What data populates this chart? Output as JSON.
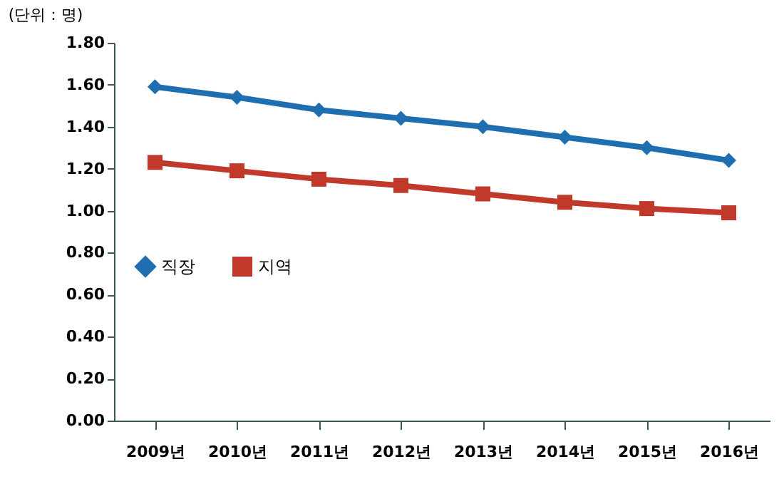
{
  "chart_data": {
    "type": "line",
    "ylabel": "(단위 : 명)",
    "categories": [
      "2009년",
      "2010년",
      "2011년",
      "2012년",
      "2013년",
      "2014년",
      "2015년",
      "2016년"
    ],
    "series": [
      {
        "name": "직장",
        "color": "#1f6fb0",
        "marker": "diamond",
        "values": [
          1.59,
          1.54,
          1.48,
          1.44,
          1.4,
          1.35,
          1.3,
          1.24
        ]
      },
      {
        "name": "지역",
        "color": "#c0392b",
        "marker": "square",
        "values": [
          1.23,
          1.19,
          1.15,
          1.12,
          1.08,
          1.04,
          1.01,
          0.99
        ]
      }
    ],
    "ylim": [
      0,
      1.8
    ],
    "yticks": [
      {
        "value": 0,
        "label": "0.00"
      },
      {
        "value": 0.2,
        "label": "0.20"
      },
      {
        "value": 0.4,
        "label": "0.40"
      },
      {
        "value": 0.6,
        "label": "0.60"
      },
      {
        "value": 0.8,
        "label": "0.80"
      },
      {
        "value": 1.0,
        "label": "1.00"
      },
      {
        "value": 1.2,
        "label": "1.20"
      },
      {
        "value": 1.4,
        "label": "1.40"
      },
      {
        "value": 1.6,
        "label": "1.60"
      },
      {
        "value": 1.8,
        "label": "1.80"
      }
    ],
    "grid": false,
    "legend": "left"
  }
}
